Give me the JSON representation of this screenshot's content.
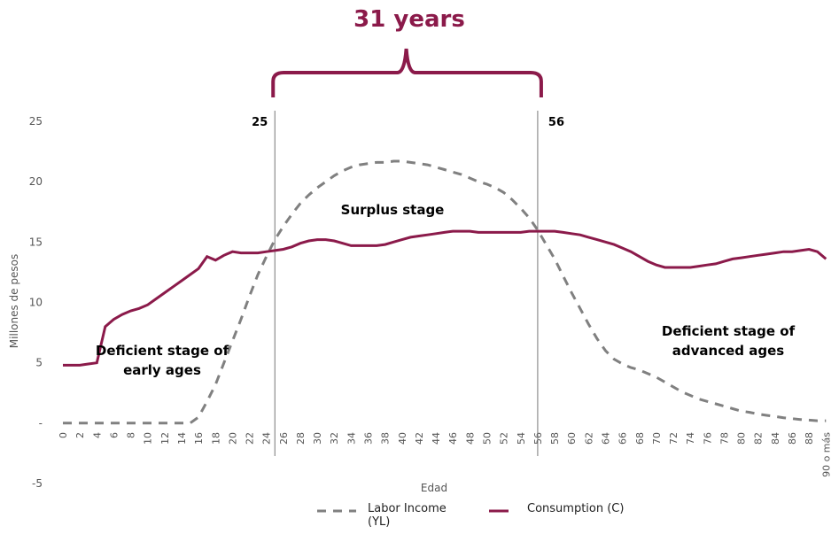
{
  "chart_data": {
    "type": "line",
    "title": "31 years",
    "y_label": "Millones de pesos",
    "x_label": "Edad",
    "categories": [
      "0",
      null,
      "2",
      null,
      "4",
      null,
      "6",
      null,
      "8",
      null,
      "10",
      null,
      "12",
      null,
      "14",
      null,
      "16",
      null,
      "18",
      null,
      "20",
      null,
      "22",
      null,
      "24",
      null,
      "26",
      null,
      "28",
      null,
      "30",
      null,
      "32",
      null,
      "34",
      null,
      "36",
      null,
      "38",
      null,
      "40",
      null,
      "42",
      null,
      "44",
      null,
      "46",
      null,
      "48",
      null,
      "50",
      null,
      "52",
      null,
      "54",
      null,
      "56",
      null,
      "58",
      null,
      "60",
      null,
      "62",
      null,
      "64",
      null,
      "66",
      null,
      "68",
      null,
      "70",
      null,
      "72",
      null,
      "74",
      null,
      "76",
      null,
      "78",
      null,
      "80",
      null,
      "82",
      null,
      "84",
      null,
      "86",
      null,
      "88",
      null,
      "90 o más"
    ],
    "series": [
      {
        "name": "Labor Income (YL)",
        "color": "#808080",
        "dashed": true,
        "values": [
          0,
          0,
          0,
          0,
          0,
          0,
          0,
          0,
          0,
          0,
          0,
          0,
          0,
          0,
          0,
          0,
          0.5,
          1.8,
          3.2,
          5,
          6.8,
          8.6,
          10.5,
          12.3,
          13.8,
          15.2,
          16.3,
          17.3,
          18.2,
          18.9,
          19.5,
          20.0,
          20.5,
          20.9,
          21.2,
          21.4,
          21.5,
          21.6,
          21.6,
          21.7,
          21.7,
          21.6,
          21.5,
          21.4,
          21.2,
          21.0,
          20.8,
          20.6,
          20.3,
          20.0,
          19.8,
          19.5,
          19.1,
          18.5,
          17.8,
          17.0,
          16.0,
          14.8,
          13.6,
          12.2,
          10.8,
          9.5,
          8.2,
          7.0,
          6.0,
          5.3,
          4.9,
          4.6,
          4.4,
          4.1,
          3.8,
          3.4,
          3.0,
          2.6,
          2.3,
          2.0,
          1.8,
          1.6,
          1.4,
          1.2,
          1.0,
          0.9,
          0.75,
          0.65,
          0.55,
          0.45,
          0.38,
          0.3,
          0.25,
          0.2,
          0.2
        ]
      },
      {
        "name": "Consumption (C)",
        "color": "#8b1a4a",
        "dashed": false,
        "values": [
          4.8,
          4.8,
          4.8,
          4.9,
          5.0,
          8.0,
          8.6,
          9.0,
          9.3,
          9.5,
          9.8,
          10.3,
          10.8,
          11.3,
          11.8,
          12.3,
          12.8,
          13.8,
          13.5,
          13.9,
          14.2,
          14.1,
          14.1,
          14.1,
          14.2,
          14.3,
          14.4,
          14.6,
          14.9,
          15.1,
          15.2,
          15.2,
          15.1,
          14.9,
          14.7,
          14.7,
          14.7,
          14.7,
          14.8,
          15.0,
          15.2,
          15.4,
          15.5,
          15.6,
          15.7,
          15.8,
          15.9,
          15.9,
          15.9,
          15.8,
          15.8,
          15.8,
          15.8,
          15.8,
          15.8,
          15.9,
          15.9,
          15.9,
          15.9,
          15.8,
          15.7,
          15.6,
          15.4,
          15.2,
          15.0,
          14.8,
          14.5,
          14.2,
          13.8,
          13.4,
          13.1,
          12.9,
          12.9,
          12.9,
          12.9,
          13.0,
          13.1,
          13.2,
          13.4,
          13.6,
          13.7,
          13.8,
          13.9,
          14.0,
          14.1,
          14.2,
          14.2,
          14.3,
          14.4,
          14.2,
          13.6
        ]
      }
    ],
    "ylim": [
      -5,
      25
    ],
    "yticks": [
      -5,
      {
        "value": 0,
        "label": "-"
      },
      5,
      10,
      15,
      20,
      25
    ],
    "vlines": [
      25,
      56
    ],
    "annotations": [
      "Surplus stage",
      "Deficient stage of early ages",
      "Deficient stage of advanced ages"
    ],
    "grid": false,
    "legend": "bottom"
  }
}
